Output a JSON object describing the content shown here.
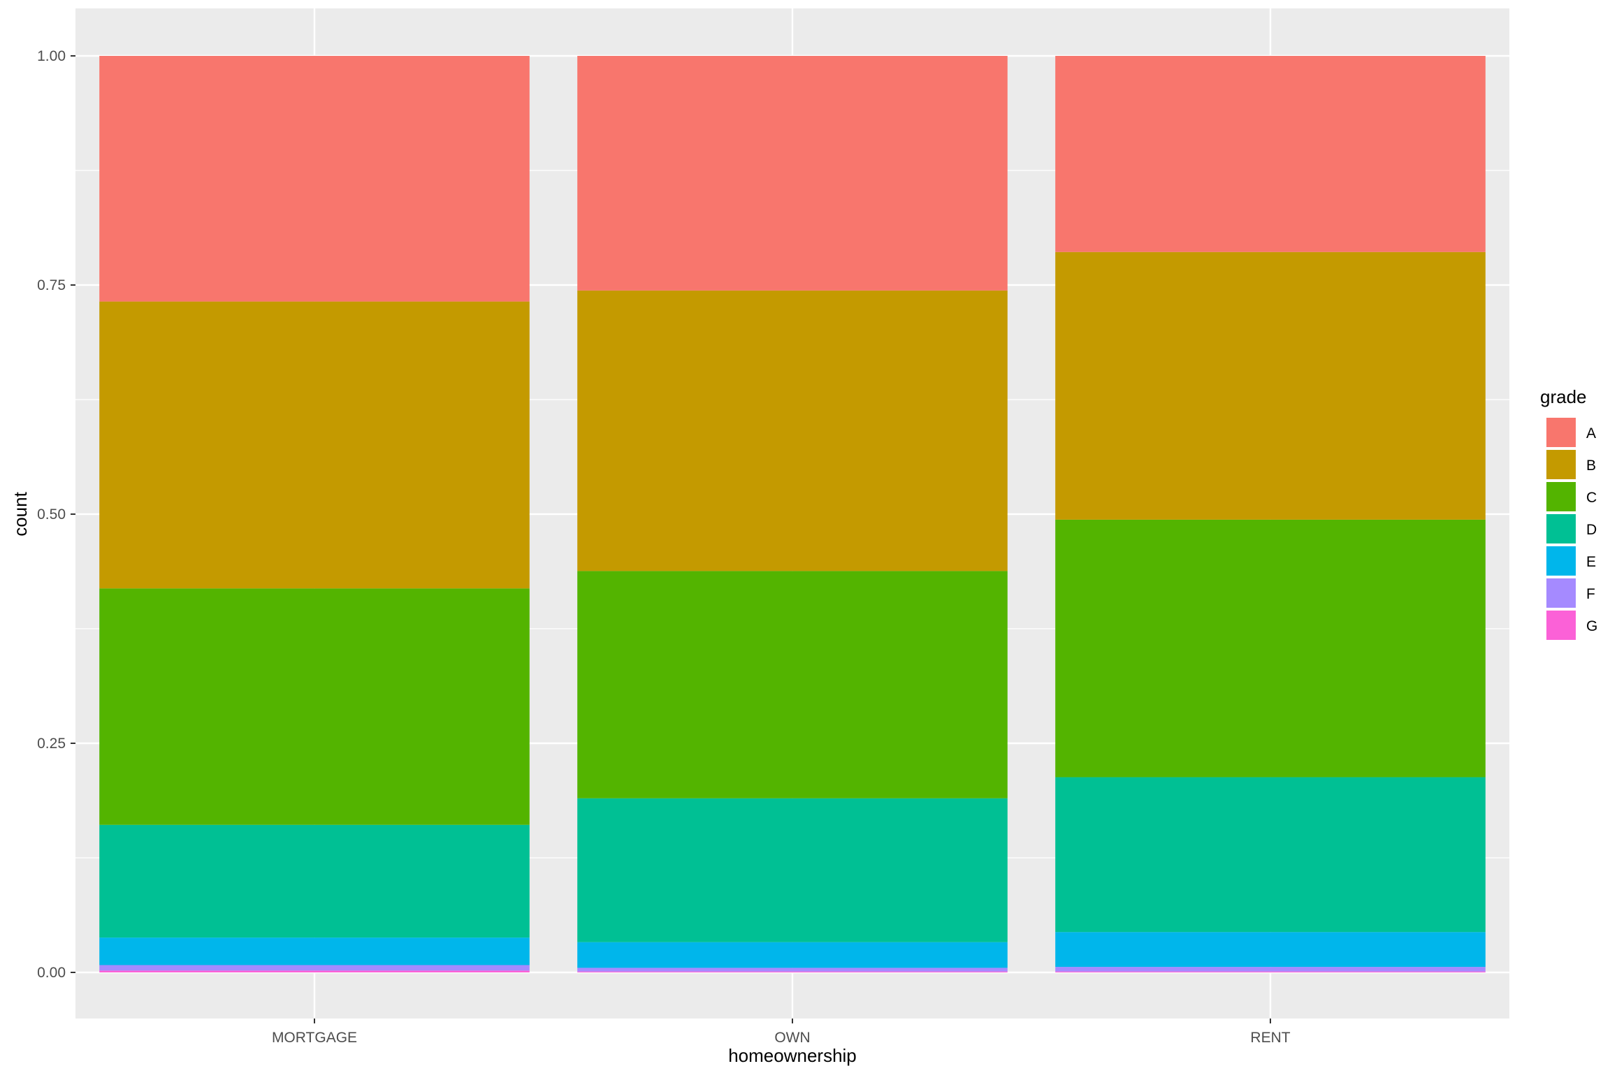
{
  "chart_data": {
    "type": "bar",
    "stacked": true,
    "position": "fill",
    "title": "",
    "xlabel": "homeownership",
    "ylabel": "count",
    "categories": [
      "MORTGAGE",
      "OWN",
      "RENT"
    ],
    "ylim": [
      -0.05,
      1.05
    ],
    "yticks": [
      0,
      0.25,
      0.5,
      0.75,
      1
    ],
    "ytick_labels": [
      "0.00",
      "0.25",
      "0.50",
      "0.75",
      "1.00"
    ],
    "grid": true,
    "legend": {
      "title": "grade",
      "position": "right"
    },
    "background": "#EBEBEB",
    "series": [
      {
        "name": "A",
        "color": "#F8766D",
        "values": [
          0.268,
          0.256,
          0.214
        ]
      },
      {
        "name": "B",
        "color": "#C49A00",
        "values": [
          0.313,
          0.306,
          0.292
        ]
      },
      {
        "name": "C",
        "color": "#53B400",
        "values": [
          0.258,
          0.248,
          0.281
        ]
      },
      {
        "name": "D",
        "color": "#00C094",
        "values": [
          0.123,
          0.157,
          0.169
        ]
      },
      {
        "name": "E",
        "color": "#00B6EB",
        "values": [
          0.03,
          0.028,
          0.038
        ]
      },
      {
        "name": "F",
        "color": "#A58AFF",
        "values": [
          0.006,
          0.004,
          0.005
        ]
      },
      {
        "name": "G",
        "color": "#FB61D7",
        "values": [
          0.002,
          0.001,
          0.001
        ]
      }
    ]
  }
}
